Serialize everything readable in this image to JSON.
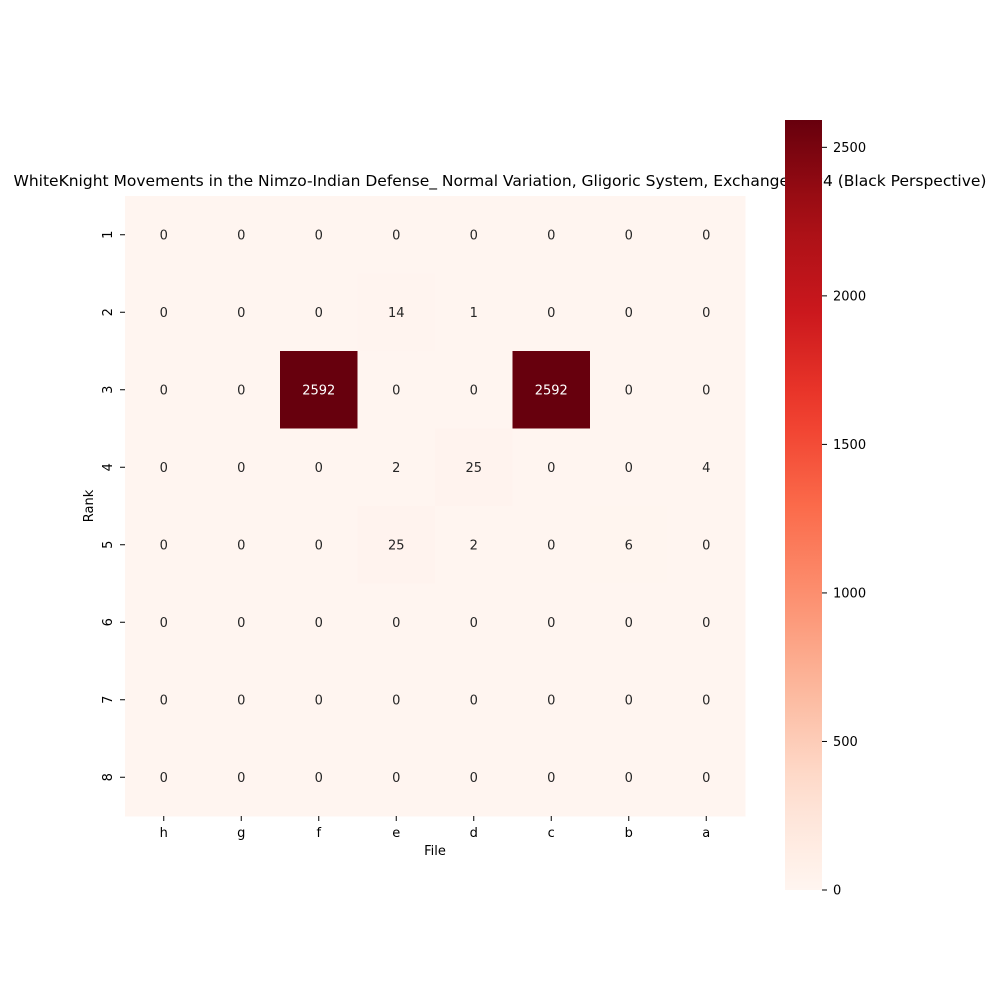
{
  "chart_data": {
    "type": "heatmap",
    "title": "WhiteKnight Movements in the Nimzo-Indian Defense_ Normal Variation, Gligoric System, Exchange at c4 (Black Perspective)",
    "xlabel": "File",
    "ylabel": "Rank",
    "x_categories": [
      "h",
      "g",
      "f",
      "e",
      "d",
      "c",
      "b",
      "a"
    ],
    "y_categories": [
      "1",
      "2",
      "3",
      "4",
      "5",
      "6",
      "7",
      "8"
    ],
    "values": [
      [
        0,
        0,
        0,
        0,
        0,
        0,
        0,
        0
      ],
      [
        0,
        0,
        0,
        14,
        1,
        0,
        0,
        0
      ],
      [
        0,
        0,
        2592,
        0,
        0,
        2592,
        0,
        0
      ],
      [
        0,
        0,
        0,
        2,
        25,
        0,
        0,
        4
      ],
      [
        0,
        0,
        0,
        25,
        2,
        0,
        6,
        0
      ],
      [
        0,
        0,
        0,
        0,
        0,
        0,
        0,
        0
      ],
      [
        0,
        0,
        0,
        0,
        0,
        0,
        0,
        0
      ],
      [
        0,
        0,
        0,
        0,
        0,
        0,
        0,
        0
      ]
    ],
    "colormap": "Reds",
    "color_range": [
      0,
      2592
    ],
    "colorbar_ticks": [
      0,
      500,
      1000,
      1500,
      2000,
      2500
    ],
    "grid": false,
    "legend": "colorbar-right"
  }
}
